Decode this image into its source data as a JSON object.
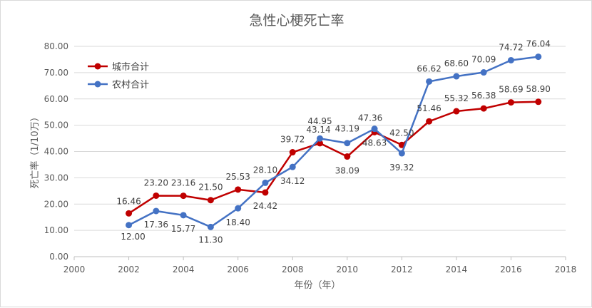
{
  "chart_data": {
    "type": "line",
    "title": "急性心梗死亡率",
    "xlabel": "年份（年）",
    "ylabel": "死亡率（1/10万）",
    "xlim": [
      2000,
      2018
    ],
    "ylim": [
      0,
      80
    ],
    "x_ticks": [
      "2000",
      "2002",
      "2004",
      "2006",
      "2008",
      "2010",
      "2012",
      "2014",
      "2016",
      "2018"
    ],
    "y_ticks": [
      "0.00",
      "10.00",
      "20.00",
      "30.00",
      "40.00",
      "50.00",
      "60.00",
      "70.00",
      "80.00"
    ],
    "grid": "horizontal",
    "legend_position": "top-left",
    "x": [
      2002,
      2003,
      2004,
      2005,
      2006,
      2007,
      2008,
      2009,
      2010,
      2011,
      2012,
      2013,
      2014,
      2015,
      2016,
      2017
    ],
    "series": [
      {
        "name": "城市合计",
        "color": "#c00000",
        "values": [
          16.46,
          23.2,
          23.16,
          21.5,
          25.53,
          24.42,
          39.72,
          43.14,
          38.09,
          47.36,
          42.5,
          51.46,
          55.32,
          56.38,
          58.69,
          58.9
        ],
        "labels": [
          "16.46",
          "23.20",
          "23.16",
          "21.50",
          "25.53",
          "24.42",
          "39.72",
          "43.14",
          "38.09",
          "47.36",
          "42.50",
          "51.46",
          "55.32",
          "56.38",
          "58.69",
          "58.90"
        ]
      },
      {
        "name": "农村合计",
        "color": "#4472c4",
        "values": [
          12.0,
          17.36,
          15.77,
          11.3,
          18.4,
          28.1,
          34.12,
          44.95,
          43.19,
          48.63,
          39.32,
          66.62,
          68.6,
          70.09,
          74.72,
          76.04
        ],
        "labels": [
          "12.00",
          "17.36",
          "15.77",
          "11.30",
          "18.40",
          "28.10",
          "34.12",
          "44.95",
          "43.19",
          "48.63",
          "39.32",
          "66.62",
          "68.60",
          "70.09",
          "74.72",
          "76.04"
        ]
      }
    ]
  }
}
